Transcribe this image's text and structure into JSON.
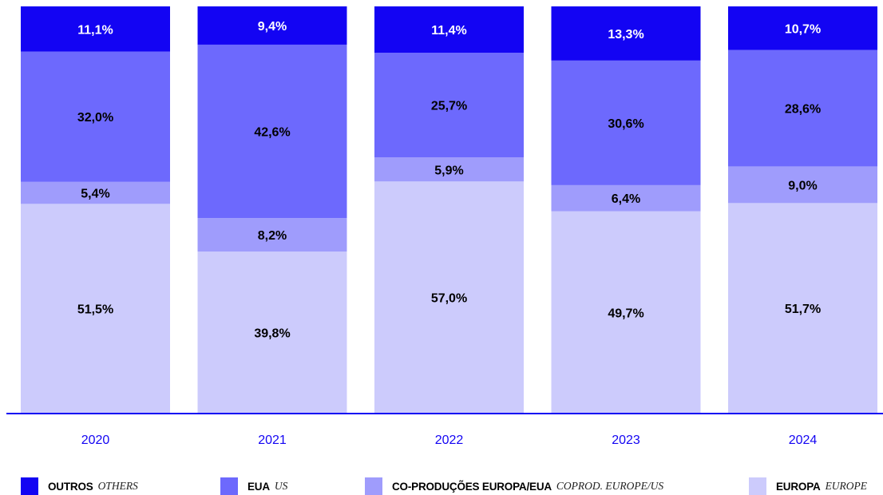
{
  "chart_data": {
    "type": "bar",
    "stacked": true,
    "percent": true,
    "categories": [
      "2020",
      "2021",
      "2022",
      "2023",
      "2024"
    ],
    "series": [
      {
        "name": "EUROPA",
        "name_en": "EUROPE",
        "color": "#cccbfc",
        "values": [
          51.5,
          39.8,
          57.0,
          49.7,
          51.7
        ],
        "labels": [
          "51,5%",
          "39,8%",
          "57,0%",
          "49,7%",
          "51,7%"
        ]
      },
      {
        "name": "CO-PRODUÇÕES EUROPA/EUA",
        "name_en": "COPROD. EUROPE/US",
        "color": "#9f9cfc",
        "values": [
          5.4,
          8.2,
          5.9,
          6.4,
          9.0
        ],
        "labels": [
          "5,4%",
          "8,2%",
          "5,9%",
          "6,4%",
          "9,0%"
        ]
      },
      {
        "name": "EUA",
        "name_en": "US",
        "color": "#6d69fd",
        "values": [
          32.0,
          42.6,
          25.7,
          30.6,
          28.6
        ],
        "labels": [
          "32,0%",
          "42,6%",
          "25,7%",
          "30,6%",
          "28,6%"
        ]
      },
      {
        "name": "OUTROS",
        "name_en": "OTHERS",
        "color": "#1304f3",
        "values": [
          11.1,
          9.4,
          11.4,
          13.3,
          10.7
        ],
        "labels": [
          "11,1%",
          "9,4%",
          "11,4%",
          "13,3%",
          "10,7%"
        ]
      }
    ],
    "ylim": [
      0,
      100
    ],
    "grid": false,
    "legend_position": "bottom",
    "axis_color": "#1304f3",
    "year_label_color": "#1304f3"
  },
  "legend": [
    {
      "label": "OUTROS",
      "sublabel": "OTHERS",
      "color": "#1304f3"
    },
    {
      "label": "EUA",
      "sublabel": "US",
      "color": "#6d69fd"
    },
    {
      "label": "CO-PRODUÇÕES EUROPA/EUA",
      "sublabel": "COPROD. EUROPE/US",
      "color": "#9f9cfc"
    },
    {
      "label": "EUROPA",
      "sublabel": "EUROPE",
      "color": "#cccbfc"
    }
  ]
}
